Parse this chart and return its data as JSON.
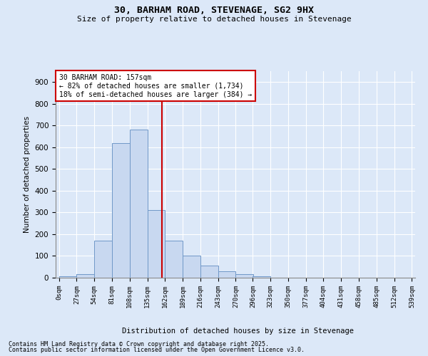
{
  "title": "30, BARHAM ROAD, STEVENAGE, SG2 9HX",
  "subtitle": "Size of property relative to detached houses in Stevenage",
  "xlabel": "Distribution of detached houses by size in Stevenage",
  "ylabel": "Number of detached properties",
  "footnote1": "Contains HM Land Registry data © Crown copyright and database right 2025.",
  "footnote2": "Contains public sector information licensed under the Open Government Licence v3.0.",
  "annotation_title": "30 BARHAM ROAD: 157sqm",
  "annotation_line1": "← 82% of detached houses are smaller (1,734)",
  "annotation_line2": "18% of semi-detached houses are larger (384) →",
  "property_size": 157,
  "bin_edges": [
    0,
    27,
    54,
    81,
    108,
    135,
    162,
    189,
    216,
    243,
    270,
    296,
    323,
    350,
    377,
    404,
    431,
    458,
    485,
    512,
    539
  ],
  "bar_values": [
    5,
    15,
    170,
    620,
    680,
    310,
    170,
    100,
    55,
    30,
    15,
    5,
    0,
    0,
    0,
    0,
    0,
    0,
    0,
    0
  ],
  "bar_color": "#c8d8f0",
  "bar_edge_color": "#7098c8",
  "vline_color": "#cc0000",
  "vline_x": 157,
  "annotation_box_edge": "#cc0000",
  "background_color": "#dce8f8",
  "grid_color": "#ffffff",
  "ylim": [
    0,
    950
  ],
  "yticks": [
    0,
    100,
    200,
    300,
    400,
    500,
    600,
    700,
    800,
    900
  ]
}
